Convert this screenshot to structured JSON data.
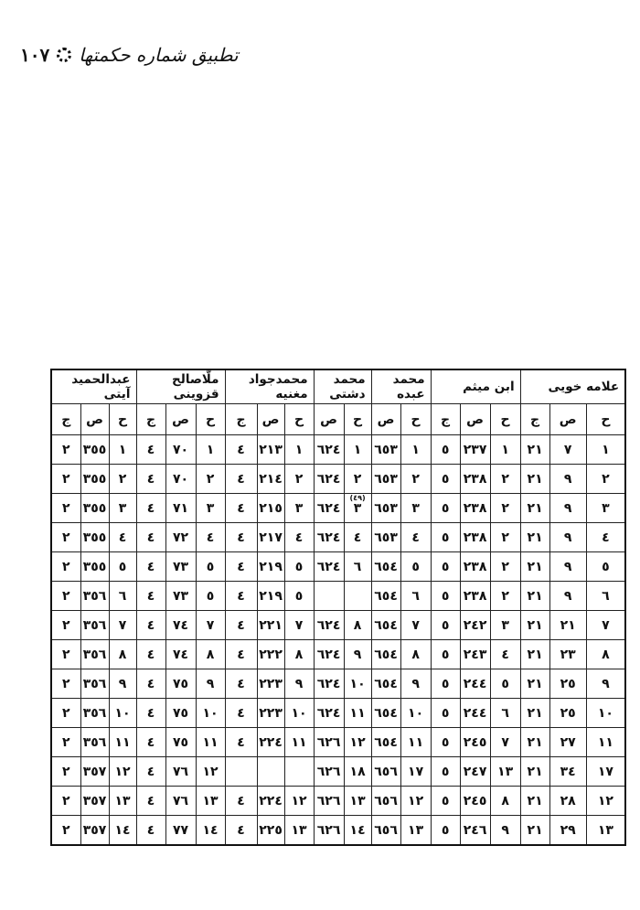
{
  "running_head": {
    "page_number": "١٠٧",
    "ornament_icon": "sun-ornament-icon",
    "title": "تطبیق شماره حکمتها"
  },
  "table": {
    "groups": [
      {
        "label": "علامه خویی",
        "subs": [
          "ح",
          "ص",
          "ج"
        ]
      },
      {
        "label": "ابن میثم",
        "subs": [
          "ح",
          "ص",
          "ج"
        ]
      },
      {
        "label": "محمد عبده",
        "subs": [
          "ح",
          "ص"
        ]
      },
      {
        "label": "محمد دشتی",
        "subs": [
          "ح",
          "ص"
        ]
      },
      {
        "label": "محمدجواد مغنیه",
        "subs": [
          "ح",
          "ص",
          "ج"
        ]
      },
      {
        "label": "ملّاصالح قزوینی",
        "subs": [
          "ح",
          "ص",
          "ج"
        ]
      },
      {
        "label": "عبدالحمید آیتی",
        "subs": [
          "ح",
          "ص",
          "ج"
        ]
      }
    ],
    "rows": [
      [
        "١",
        "٧",
        "٢١",
        "١",
        "٢٣٧",
        "٥",
        "١",
        "٦٥٣",
        "١",
        "٦٢٤",
        "١",
        "٢١٣",
        "٤",
        "١",
        "٧٠",
        "٤",
        "١",
        "٣٥٥",
        "٢"
      ],
      [
        "٢",
        "٩",
        "٢١",
        "٢",
        "٢٣٨",
        "٥",
        "٢",
        "٦٥٣",
        "٢",
        "٦٢٤",
        "٢",
        "٢١٤",
        "٤",
        "٢",
        "٧٠",
        "٤",
        "٢",
        "٣٥٥",
        "٢"
      ],
      [
        "٣",
        "٩",
        "٢١",
        "٢",
        "٢٣٨",
        "٥",
        "٣",
        "٦٥٣",
        "٣",
        "٦٢٤",
        "٣",
        "٢١٥",
        "٤",
        "٣",
        "٧١",
        "٤",
        "٣",
        "٣٥٥",
        "٢"
      ],
      [
        "٤",
        "٩",
        "٢١",
        "٢",
        "٢٣٨",
        "٥",
        "٤",
        "٦٥٣",
        "٤",
        "٦٢٤",
        "٤",
        "٢١٧",
        "٤",
        "٤",
        "٧٢",
        "٤",
        "٤",
        "٣٥٥",
        "٢"
      ],
      [
        "٥",
        "٩",
        "٢١",
        "٢",
        "٢٣٨",
        "٥",
        "٥",
        "٦٥٤",
        "٦",
        "٦٢٤",
        "٥",
        "٢١٩",
        "٤",
        "٥",
        "٧٣",
        "٤",
        "٥",
        "٣٥٥",
        "٢"
      ],
      [
        "٦",
        "٩",
        "٢١",
        "٢",
        "٢٣٨",
        "٥",
        "٦",
        "٦٥٤",
        "",
        "",
        "٥",
        "٢١٩",
        "٤",
        "٥",
        "٧٣",
        "٤",
        "٦",
        "٣٥٦",
        "٢"
      ],
      [
        "٧",
        "٢١",
        "٢١",
        "٣",
        "٢٤٢",
        "٥",
        "٧",
        "٦٥٤",
        "٨",
        "٦٢٤",
        "٧",
        "٢٢١",
        "٤",
        "٧",
        "٧٤",
        "٤",
        "٧",
        "٣٥٦",
        "٢"
      ],
      [
        "٨",
        "٢٣",
        "٢١",
        "٤",
        "٢٤٣",
        "٥",
        "٨",
        "٦٥٤",
        "٩",
        "٦٢٤",
        "٨",
        "٢٢٢",
        "٤",
        "٨",
        "٧٤",
        "٤",
        "٨",
        "٣٥٦",
        "٢"
      ],
      [
        "٩",
        "٢٥",
        "٢١",
        "٥",
        "٢٤٤",
        "٥",
        "٩",
        "٦٥٤",
        "١٠",
        "٦٢٤",
        "٩",
        "٢٢٣",
        "٤",
        "٩",
        "٧٥",
        "٤",
        "٩",
        "٣٥٦",
        "٢"
      ],
      [
        "١٠",
        "٢٥",
        "٢١",
        "٦",
        "٢٤٤",
        "٥",
        "١٠",
        "٦٥٤",
        "١١",
        "٦٢٤",
        "١٠",
        "٢٢٣",
        "٤",
        "١٠",
        "٧٥",
        "٤",
        "١٠",
        "٣٥٦",
        "٢"
      ],
      [
        "١١",
        "٢٧",
        "٢١",
        "٧",
        "٢٤٥",
        "٥",
        "١١",
        "٦٥٤",
        "١٢",
        "٦٢٦",
        "١١",
        "٢٢٤",
        "٤",
        "١١",
        "٧٥",
        "٤",
        "١١",
        "٣٥٦",
        "٢"
      ],
      [
        "١٧",
        "٣٤",
        "٢١",
        "١٣",
        "٢٤٧",
        "٥",
        "١٧",
        "٦٥٦",
        "١٨",
        "٦٢٦",
        "",
        "",
        "",
        "١٢",
        "٧٦",
        "٤",
        "١٢",
        "٣٥٧",
        "٢"
      ],
      [
        "١٢",
        "٢٨",
        "٢١",
        "٨",
        "٢٤٥",
        "٥",
        "١٢",
        "٦٥٦",
        "١٣",
        "٦٢٦",
        "١٢",
        "٢٢٤",
        "٤",
        "١٣",
        "٧٦",
        "٤",
        "١٣",
        "٣٥٧",
        "٢"
      ],
      [
        "١٣",
        "٢٩",
        "٢١",
        "٩",
        "٢٤٦",
        "٥",
        "١٣",
        "٦٥٦",
        "١٤",
        "٦٢٦",
        "١٣",
        "٢٢٥",
        "٤",
        "١٤",
        "٧٧",
        "٤",
        "١٤",
        "٣٥٧",
        "٢"
      ]
    ],
    "footnote": {
      "text": "(٤٩)",
      "row": 3,
      "group": "محمد دشتی",
      "sub": "ح"
    }
  }
}
